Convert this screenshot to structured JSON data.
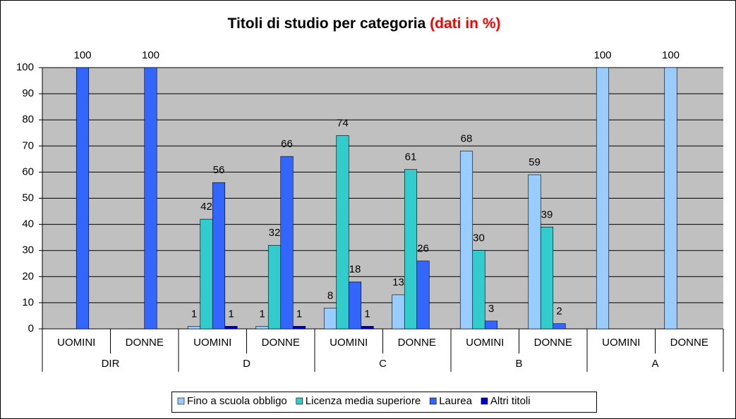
{
  "chart_data": {
    "type": "bar",
    "title": "Titoli di studio per categoria",
    "title_highlight": "(dati in %)",
    "categories": [
      "UOMINI",
      "DONNE",
      "UOMINI",
      "DONNE",
      "UOMINI",
      "DONNE",
      "UOMINI",
      "DONNE",
      "UOMINI",
      "DONNE"
    ],
    "groups": [
      "DIR",
      "D",
      "C",
      "B",
      "A"
    ],
    "series": [
      {
        "name": "Fino a scuola obbligo",
        "color": "#99ccff",
        "values": [
          null,
          null,
          1,
          1,
          8,
          13,
          68,
          59,
          100,
          100
        ]
      },
      {
        "name": "Licenza media superiore",
        "color": "#33cccc",
        "values": [
          null,
          null,
          42,
          32,
          74,
          61,
          30,
          39,
          null,
          null
        ]
      },
      {
        "name": "Laurea",
        "color": "#3366ff",
        "values": [
          100,
          100,
          56,
          66,
          18,
          26,
          3,
          2,
          null,
          null
        ]
      },
      {
        "name": "Altri titoli",
        "color": "#0000cc",
        "values": [
          null,
          null,
          1,
          1,
          1,
          null,
          null,
          null,
          null,
          null
        ]
      }
    ],
    "ylim": [
      0,
      100
    ],
    "yticks": [
      0,
      10,
      20,
      30,
      40,
      50,
      60,
      70,
      80,
      90,
      100
    ],
    "grid": true,
    "legend": "bottom"
  }
}
